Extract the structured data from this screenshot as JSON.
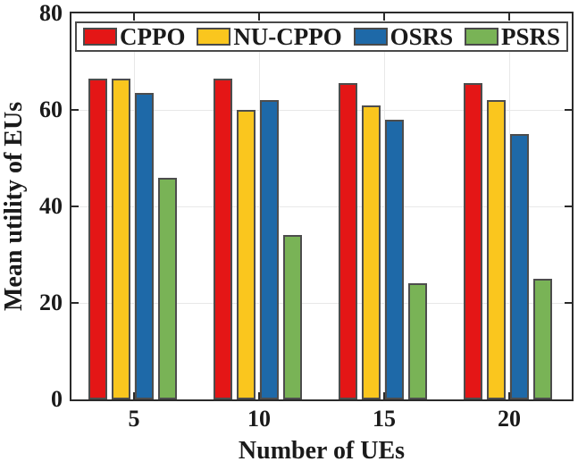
{
  "chart_data": {
    "type": "bar",
    "title": "",
    "xlabel": "Number of UEs",
    "ylabel": "Mean utility of EUs",
    "categories": [
      "5",
      "10",
      "15",
      "20"
    ],
    "series": [
      {
        "name": "CPPO",
        "color": "#e41616",
        "values": [
          66.5,
          66.5,
          65.5,
          65.5
        ]
      },
      {
        "name": "NU-CPPO",
        "color": "#fac61e",
        "values": [
          66.5,
          60.0,
          61.0,
          62.0
        ]
      },
      {
        "name": "OSRS",
        "color": "#1e69a8",
        "values": [
          63.5,
          62.0,
          58.0,
          55.0
        ]
      },
      {
        "name": "PSRS",
        "color": "#79b356",
        "values": [
          46.0,
          34.0,
          24.0,
          25.0
        ]
      }
    ],
    "ylim": [
      0,
      80
    ],
    "yticks": [
      0,
      20,
      40,
      60,
      80
    ],
    "grid": true,
    "legend_position": "top-inside"
  },
  "colors": {
    "axis": "#2b2b2b",
    "grid": "#e8e8e8",
    "bar_border": "#4d4d4d",
    "text": "#1a1a1a",
    "background": "#ffffff"
  }
}
